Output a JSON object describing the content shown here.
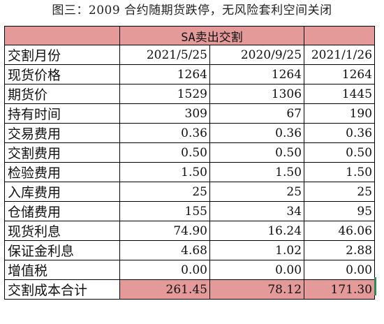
{
  "caption": "图三：2009 合约随期货跌停，无风险套利空间关闭",
  "table": {
    "title": "SA卖出交割",
    "header_label": "交割月份",
    "months": [
      "2021/5/25",
      "2020/9/25",
      "2021/1/26"
    ],
    "rows": [
      {
        "label": "现货价格",
        "values": [
          "1264",
          "1264",
          "1264"
        ]
      },
      {
        "label": "期货价",
        "values": [
          "1529",
          "1306",
          "1445"
        ]
      },
      {
        "label": "持有时间",
        "values": [
          "309",
          "67",
          "190"
        ]
      },
      {
        "label": "交易费用",
        "values": [
          "0.36",
          "0.36",
          "0.36"
        ]
      },
      {
        "label": "交割费用",
        "values": [
          "0.50",
          "0.50",
          "0.50"
        ]
      },
      {
        "label": "检验费用",
        "values": [
          "1.50",
          "1.50",
          "1.50"
        ]
      },
      {
        "label": "入库费用",
        "values": [
          "25",
          "25",
          "25"
        ]
      },
      {
        "label": "仓储费用",
        "values": [
          "155",
          "34",
          "95"
        ]
      },
      {
        "label": "现货利息",
        "values": [
          "74.90",
          "16.24",
          "46.06"
        ]
      },
      {
        "label": "保证金利息",
        "values": [
          "4.68",
          "1.02",
          "2.88"
        ]
      },
      {
        "label": "增值税",
        "values": [
          "0.00",
          "0.00",
          "0.00"
        ]
      }
    ],
    "total": {
      "label": "交割成本合计",
      "values": [
        "261.45",
        "78.12",
        "171.30"
      ]
    }
  },
  "colors": {
    "header_fill": "#e59a9a",
    "total_fill": "#e59a9a",
    "edge_mark": "#2e8b57"
  }
}
